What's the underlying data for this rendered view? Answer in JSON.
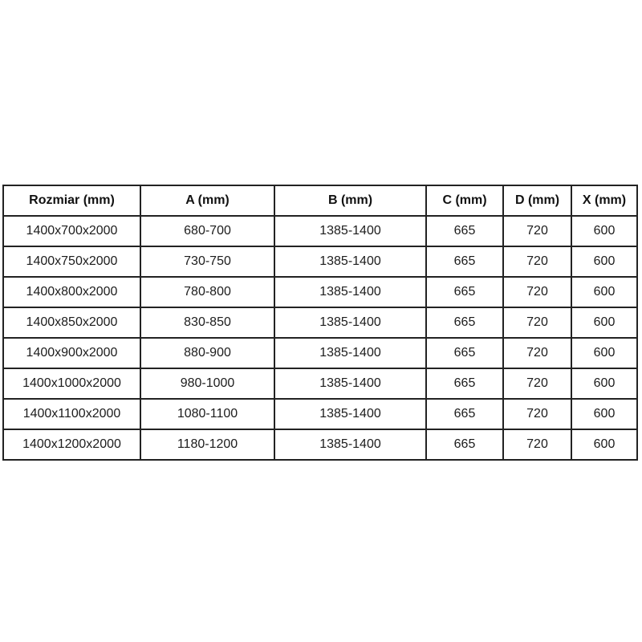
{
  "chart_data": {
    "type": "table",
    "title": "",
    "columns": [
      "Rozmiar (mm)",
      "A (mm)",
      "B (mm)",
      "C (mm)",
      "D (mm)",
      "X (mm)"
    ],
    "rows": [
      [
        "1400x700x2000",
        "680-700",
        "1385-1400",
        "665",
        "720",
        "600"
      ],
      [
        "1400x750x2000",
        "730-750",
        "1385-1400",
        "665",
        "720",
        "600"
      ],
      [
        "1400x800x2000",
        "780-800",
        "1385-1400",
        "665",
        "720",
        "600"
      ],
      [
        "1400x850x2000",
        "830-850",
        "1385-1400",
        "665",
        "720",
        "600"
      ],
      [
        "1400x900x2000",
        "880-900",
        "1385-1400",
        "665",
        "720",
        "600"
      ],
      [
        "1400x1000x2000",
        "980-1000",
        "1385-1400",
        "665",
        "720",
        "600"
      ],
      [
        "1400x1100x2000",
        "1080-1100",
        "1385-1400",
        "665",
        "720",
        "600"
      ],
      [
        "1400x1200x2000",
        "1180-1200",
        "1385-1400",
        "665",
        "720",
        "600"
      ]
    ]
  },
  "colors": {
    "background": "#ffffff",
    "border": "#222222",
    "text": "#1c1c1c"
  }
}
